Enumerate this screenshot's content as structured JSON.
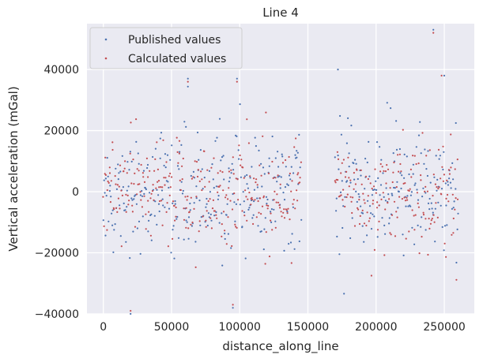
{
  "chart_data": {
    "type": "scatter",
    "title": "Line 4",
    "xlabel": "distance_along_line",
    "ylabel": "Vertical acceleration (mGal)",
    "xlim": [
      -12000,
      272000
    ],
    "ylim": [
      -40000,
      55000
    ],
    "xticks": [
      0,
      50000,
      100000,
      150000,
      200000,
      250000
    ],
    "xtick_labels": [
      "0",
      "50000",
      "100000",
      "150000",
      "200000",
      "250000"
    ],
    "yticks": [
      -40000,
      -20000,
      0,
      20000,
      40000
    ],
    "ytick_labels": [
      "−40000",
      "−20000",
      "0",
      "20000",
      "40000"
    ],
    "grid": true,
    "legend_position": "top-left",
    "series": [
      {
        "name": "Published values",
        "color": "#4c72b0",
        "segments": [
          [
            0,
            145000
          ],
          [
            170000,
            260000
          ]
        ],
        "spacing": 500,
        "spread": 9000,
        "extremes": [
          [
            98000,
            37000
          ],
          [
            20000,
            -40000
          ],
          [
            242000,
            53000
          ],
          [
            172000,
            40000
          ],
          [
            95000,
            -38000
          ],
          [
            62000,
            37000
          ],
          [
            250000,
            38000
          ]
        ]
      },
      {
        "name": "Calculated values",
        "color": "#c44e52",
        "segments": [
          [
            0,
            145000
          ],
          [
            170000,
            260000
          ]
        ],
        "spacing": 500,
        "spread": 8500,
        "extremes": [
          [
            98000,
            36000
          ],
          [
            20000,
            -39000
          ],
          [
            242000,
            52000
          ],
          [
            95000,
            -37000
          ],
          [
            62000,
            36000
          ],
          [
            248000,
            38000
          ]
        ]
      }
    ]
  }
}
